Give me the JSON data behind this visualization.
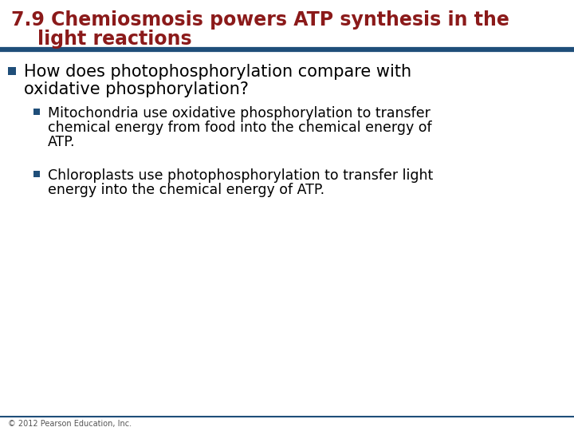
{
  "title_line1": "7.9 Chemiosmosis powers ATP synthesis in the",
  "title_line2": "    light reactions",
  "title_color": "#8B1A1A",
  "rule_color": "#1F4E79",
  "bg_color": "#FFFFFF",
  "bullet1_color": "#000000",
  "sub_bullet_color": "#000000",
  "bullet_square_color": "#1F4E79",
  "footer_text": "© 2012 Pearson Education, Inc.",
  "footer_color": "#555555",
  "title_fontsize": 17,
  "bullet1_fontsize": 15,
  "sub_bullet_fontsize": 12.5
}
